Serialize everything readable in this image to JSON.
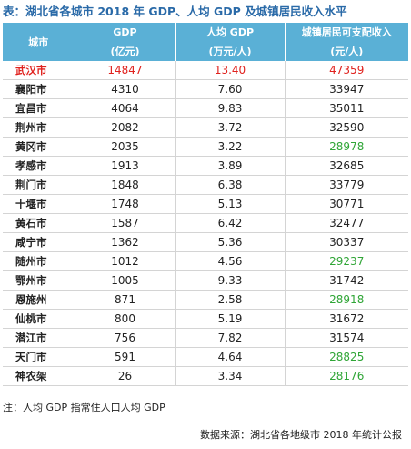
{
  "title": "表：湖北省各城市 2018 年 GDP、人均 GDP 及城镇居民收入水平",
  "headers": {
    "city": "城市",
    "gdp": "GDP",
    "gdp_unit": "(亿元)",
    "per_capita": "人均 GDP",
    "per_capita_unit": "(万元/人)",
    "income": "城镇居民可支配收入",
    "income_unit": "(元/人)"
  },
  "colors": {
    "header_bg": "#5ab0d6",
    "highlight": "#e0211d",
    "green": "#2fa536",
    "title": "#2a6aa8"
  },
  "rows": [
    {
      "city": "武汉市",
      "gdp": "14847",
      "per_capita": "13.40",
      "income": "47359",
      "highlight": true
    },
    {
      "city": "襄阳市",
      "gdp": "4310",
      "per_capita": "7.60",
      "income": "33947"
    },
    {
      "city": "宜昌市",
      "gdp": "4064",
      "per_capita": "9.83",
      "income": "35011"
    },
    {
      "city": "荆州市",
      "gdp": "2082",
      "per_capita": "3.72",
      "income": "32590"
    },
    {
      "city": "黄冈市",
      "gdp": "2035",
      "per_capita": "3.22",
      "income": "28978",
      "income_green": true
    },
    {
      "city": "孝感市",
      "gdp": "1913",
      "per_capita": "3.89",
      "income": "32685"
    },
    {
      "city": "荆门市",
      "gdp": "1848",
      "per_capita": "6.38",
      "income": "33779"
    },
    {
      "city": "十堰市",
      "gdp": "1748",
      "per_capita": "5.13",
      "income": "30771"
    },
    {
      "city": "黄石市",
      "gdp": "1587",
      "per_capita": "6.42",
      "income": "32477"
    },
    {
      "city": "咸宁市",
      "gdp": "1362",
      "per_capita": "5.36",
      "income": "30337"
    },
    {
      "city": "随州市",
      "gdp": "1012",
      "per_capita": "4.56",
      "income": "29237",
      "income_green": true
    },
    {
      "city": "鄂州市",
      "gdp": "1005",
      "per_capita": "9.33",
      "income": "31742"
    },
    {
      "city": "恩施州",
      "gdp": "871",
      "per_capita": "2.58",
      "income": "28918",
      "income_green": true
    },
    {
      "city": "仙桃市",
      "gdp": "800",
      "per_capita": "5.19",
      "income": "31672"
    },
    {
      "city": "潜江市",
      "gdp": "756",
      "per_capita": "7.82",
      "income": "31574"
    },
    {
      "city": "天门市",
      "gdp": "591",
      "per_capita": "4.64",
      "income": "28825",
      "income_green": true
    },
    {
      "city": "神农架",
      "gdp": "26",
      "per_capita": "3.34",
      "income": "28176",
      "income_green": true
    }
  ],
  "note": "注：人均 GDP 指常住人口人均 GDP",
  "source": "数据来源：湖北省各地级市 2018 年统计公报"
}
